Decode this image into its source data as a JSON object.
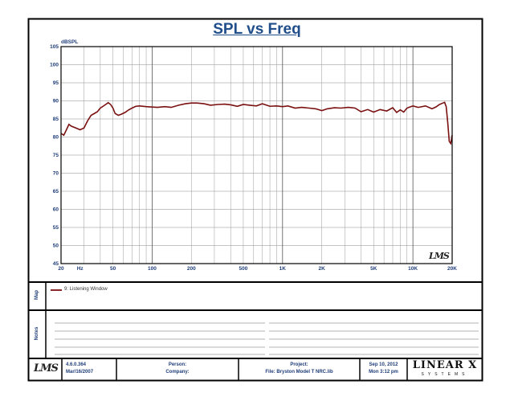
{
  "chart_data": {
    "type": "line",
    "title": "SPL vs Freq",
    "ylabel": "dBSPL",
    "xscale": "log",
    "xlim": [
      20,
      20000
    ],
    "ylim": [
      45,
      105
    ],
    "yticks": [
      45,
      50,
      55,
      60,
      65,
      70,
      75,
      80,
      85,
      90,
      95,
      100,
      105
    ],
    "xtick_labels": [
      {
        "value": 20,
        "label": "20"
      },
      {
        "value": 28,
        "label": "Hz"
      },
      {
        "value": 50,
        "label": "50"
      },
      {
        "value": 100,
        "label": "100"
      },
      {
        "value": 200,
        "label": "200"
      },
      {
        "value": 500,
        "label": "500"
      },
      {
        "value": 1000,
        "label": "1K"
      },
      {
        "value": 2000,
        "label": "2K"
      },
      {
        "value": 5000,
        "label": "5K"
      },
      {
        "value": 10000,
        "label": "10K"
      },
      {
        "value": 20000,
        "label": "20K"
      }
    ],
    "grid": true,
    "series": [
      {
        "name": "9: Listening Window",
        "color": "#7a1010",
        "x": [
          20,
          21,
          22,
          23,
          24,
          26,
          28,
          30,
          32,
          34,
          36,
          38,
          40,
          42,
          44,
          46,
          48,
          50,
          52,
          55,
          58,
          62,
          66,
          70,
          75,
          80,
          90,
          100,
          110,
          125,
          140,
          160,
          180,
          200,
          220,
          250,
          280,
          320,
          360,
          400,
          450,
          500,
          560,
          630,
          700,
          800,
          900,
          1000,
          1100,
          1250,
          1400,
          1600,
          1800,
          2000,
          2200,
          2500,
          2800,
          3200,
          3600,
          4000,
          4500,
          5000,
          5600,
          6300,
          7000,
          7500,
          8000,
          8500,
          9000,
          10000,
          11000,
          12500,
          14000,
          15000,
          16000,
          17000,
          17500,
          18000,
          18500,
          19000,
          19500,
          20000
        ],
        "y": [
          81.0,
          80.5,
          82.0,
          83.5,
          83.0,
          82.5,
          82.0,
          82.5,
          84.5,
          86.0,
          86.5,
          87.0,
          88.0,
          88.5,
          89.0,
          89.5,
          89.0,
          88.0,
          86.5,
          86.0,
          86.3,
          86.8,
          87.5,
          88.0,
          88.5,
          88.6,
          88.4,
          88.3,
          88.2,
          88.4,
          88.2,
          88.8,
          89.2,
          89.4,
          89.4,
          89.2,
          88.8,
          89.0,
          89.1,
          88.9,
          88.5,
          89.0,
          88.8,
          88.6,
          89.2,
          88.5,
          88.6,
          88.4,
          88.6,
          88.0,
          88.2,
          88.0,
          87.8,
          87.3,
          87.8,
          88.1,
          88.0,
          88.2,
          88.0,
          87.0,
          87.6,
          86.9,
          87.6,
          87.2,
          88.1,
          86.8,
          87.5,
          86.9,
          88.0,
          88.6,
          88.2,
          88.6,
          87.8,
          88.3,
          89.0,
          89.4,
          89.6,
          88.4,
          84.0,
          78.8,
          78.2,
          80.5
        ]
      }
    ]
  },
  "legend": {
    "side_label": "Map",
    "entries": [
      "9: Listening Window"
    ]
  },
  "notes": {
    "side_label": "Notes"
  },
  "footer": {
    "logo": "LMS",
    "version": "4.6.0.364",
    "version_date": "Mar/16/2007",
    "person_label": "Person:",
    "company_label": "Company:",
    "project_label": "Project:",
    "file_label": "File: Bryston Model T NRC.lib",
    "date": "Sep 10, 2012",
    "time": "Mon  3:12 pm",
    "brand": "LINEAR X",
    "brand_sub": "SYSTEMS"
  },
  "watermark": "LMS"
}
